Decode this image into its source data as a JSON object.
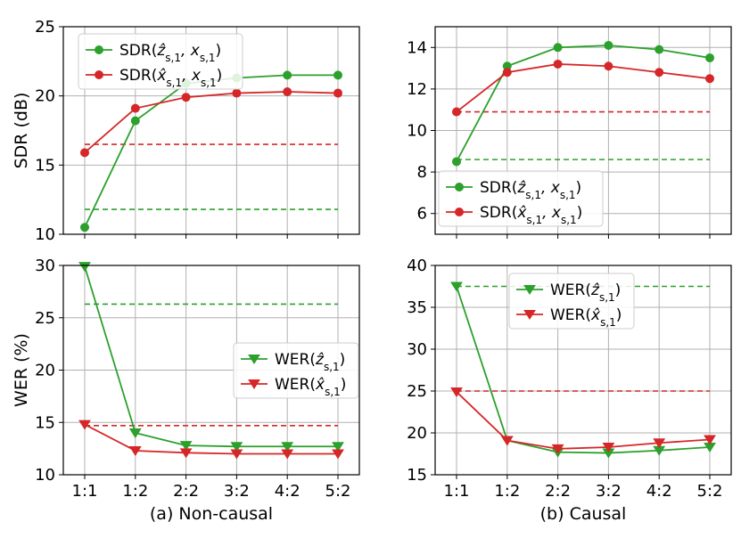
{
  "figure": {
    "caption_left": "(a) Non-causal",
    "caption_right": "(b) Causal",
    "ylabel_top": "SDR (dB)",
    "ylabel_bottom": "WER (%)"
  },
  "colors": {
    "green": "#2ca02c",
    "red": "#d62728",
    "grid": "#b0b0b0"
  },
  "chart_data": [
    {
      "id": "top-left",
      "type": "line",
      "title": "",
      "xlabel": "",
      "ylabel": "SDR (dB)",
      "categories": [
        "1:1",
        "1:2",
        "2:2",
        "3:2",
        "4:2",
        "5:2"
      ],
      "show_xtick_labels": false,
      "ylim": [
        10,
        25
      ],
      "yticks": [
        10,
        15,
        20,
        25
      ],
      "grid": true,
      "legend_position": "upper-left",
      "series": [
        {
          "name": "SDR(ẑs,1, xs,1)",
          "label_main": "SDR(",
          "label_hat": "ẑ",
          "label_rest": ", x",
          "label_sub1": "s,1",
          "label_sub2": "s,1",
          "label_close": ")",
          "color": "green",
          "marker": "circle",
          "values": [
            10.5,
            18.2,
            20.9,
            21.3,
            21.5,
            21.5
          ],
          "baseline": 11.8
        },
        {
          "name": "SDR(x̂s,1, xs,1)",
          "label_main": "SDR(",
          "label_hat": "x̂",
          "label_rest": ", x",
          "label_sub1": "s,1",
          "label_sub2": "s,1",
          "label_close": ")",
          "color": "red",
          "marker": "circle",
          "values": [
            15.9,
            19.1,
            19.9,
            20.2,
            20.3,
            20.2
          ],
          "baseline": 16.5
        }
      ]
    },
    {
      "id": "top-right",
      "type": "line",
      "title": "",
      "xlabel": "",
      "ylabel": "",
      "categories": [
        "1:1",
        "1:2",
        "2:2",
        "3:2",
        "4:2",
        "5:2"
      ],
      "show_xtick_labels": false,
      "ylim": [
        5,
        15
      ],
      "yticks": [
        6,
        8,
        10,
        12,
        14
      ],
      "grid": true,
      "legend_position": "lower-left",
      "series": [
        {
          "name": "SDR(ẑs,1, xs,1)",
          "label_main": "SDR(",
          "label_hat": "ẑ",
          "label_rest": ", x",
          "label_sub1": "s,1",
          "label_sub2": "s,1",
          "label_close": ")",
          "color": "green",
          "marker": "circle",
          "values": [
            8.5,
            13.1,
            14.0,
            14.1,
            13.9,
            13.5
          ],
          "baseline": 8.6
        },
        {
          "name": "SDR(x̂s,1, xs,1)",
          "label_main": "SDR(",
          "label_hat": "x̂",
          "label_rest": ", x",
          "label_sub1": "s,1",
          "label_sub2": "s,1",
          "label_close": ")",
          "color": "red",
          "marker": "circle",
          "values": [
            10.9,
            12.8,
            13.2,
            13.1,
            12.8,
            12.5
          ],
          "baseline": 10.9
        }
      ]
    },
    {
      "id": "bottom-left",
      "type": "line",
      "title": "",
      "xlabel": "(a) Non-causal",
      "ylabel": "WER (%)",
      "categories": [
        "1:1",
        "1:2",
        "2:2",
        "3:2",
        "4:2",
        "5:2"
      ],
      "show_xtick_labels": true,
      "ylim": [
        10,
        30
      ],
      "yticks": [
        10,
        15,
        20,
        25,
        30
      ],
      "grid": true,
      "legend_position": "center-right",
      "series": [
        {
          "name": "WER(ẑs,1)",
          "label_main": "WER(",
          "label_hat": "ẑ",
          "label_rest": "",
          "label_sub1": "s,1",
          "label_sub2": "",
          "label_close": ")",
          "color": "green",
          "marker": "triangle-down",
          "values": [
            29.9,
            14.0,
            12.8,
            12.7,
            12.7,
            12.7
          ],
          "baseline": 26.3
        },
        {
          "name": "WER(x̂s,1)",
          "label_main": "WER(",
          "label_hat": "x̂",
          "label_rest": "",
          "label_sub1": "s,1",
          "label_sub2": "",
          "label_close": ")",
          "color": "red",
          "marker": "triangle-down",
          "values": [
            14.8,
            12.3,
            12.1,
            12.0,
            12.0,
            12.0
          ],
          "baseline": 14.7
        }
      ]
    },
    {
      "id": "bottom-right",
      "type": "line",
      "title": "",
      "xlabel": "(b) Causal",
      "ylabel": "",
      "categories": [
        "1:1",
        "1:2",
        "2:2",
        "3:2",
        "4:2",
        "5:2"
      ],
      "show_xtick_labels": true,
      "ylim": [
        15,
        40
      ],
      "yticks": [
        15,
        20,
        25,
        30,
        35,
        40
      ],
      "grid": true,
      "legend_position": "top-center",
      "series": [
        {
          "name": "WER(ẑs,1)",
          "label_main": "WER(",
          "label_hat": "ẑ",
          "label_rest": "",
          "label_sub1": "s,1",
          "label_sub2": "",
          "label_close": ")",
          "color": "green",
          "marker": "triangle-down",
          "values": [
            37.5,
            19.1,
            17.7,
            17.6,
            17.9,
            18.3
          ],
          "baseline": 37.5
        },
        {
          "name": "WER(x̂s,1)",
          "label_main": "WER(",
          "label_hat": "x̂",
          "label_rest": "",
          "label_sub1": "s,1",
          "label_sub2": "",
          "label_close": ")",
          "color": "red",
          "marker": "triangle-down",
          "values": [
            24.9,
            19.1,
            18.1,
            18.3,
            18.8,
            19.2
          ],
          "baseline": 25.0
        }
      ]
    }
  ]
}
